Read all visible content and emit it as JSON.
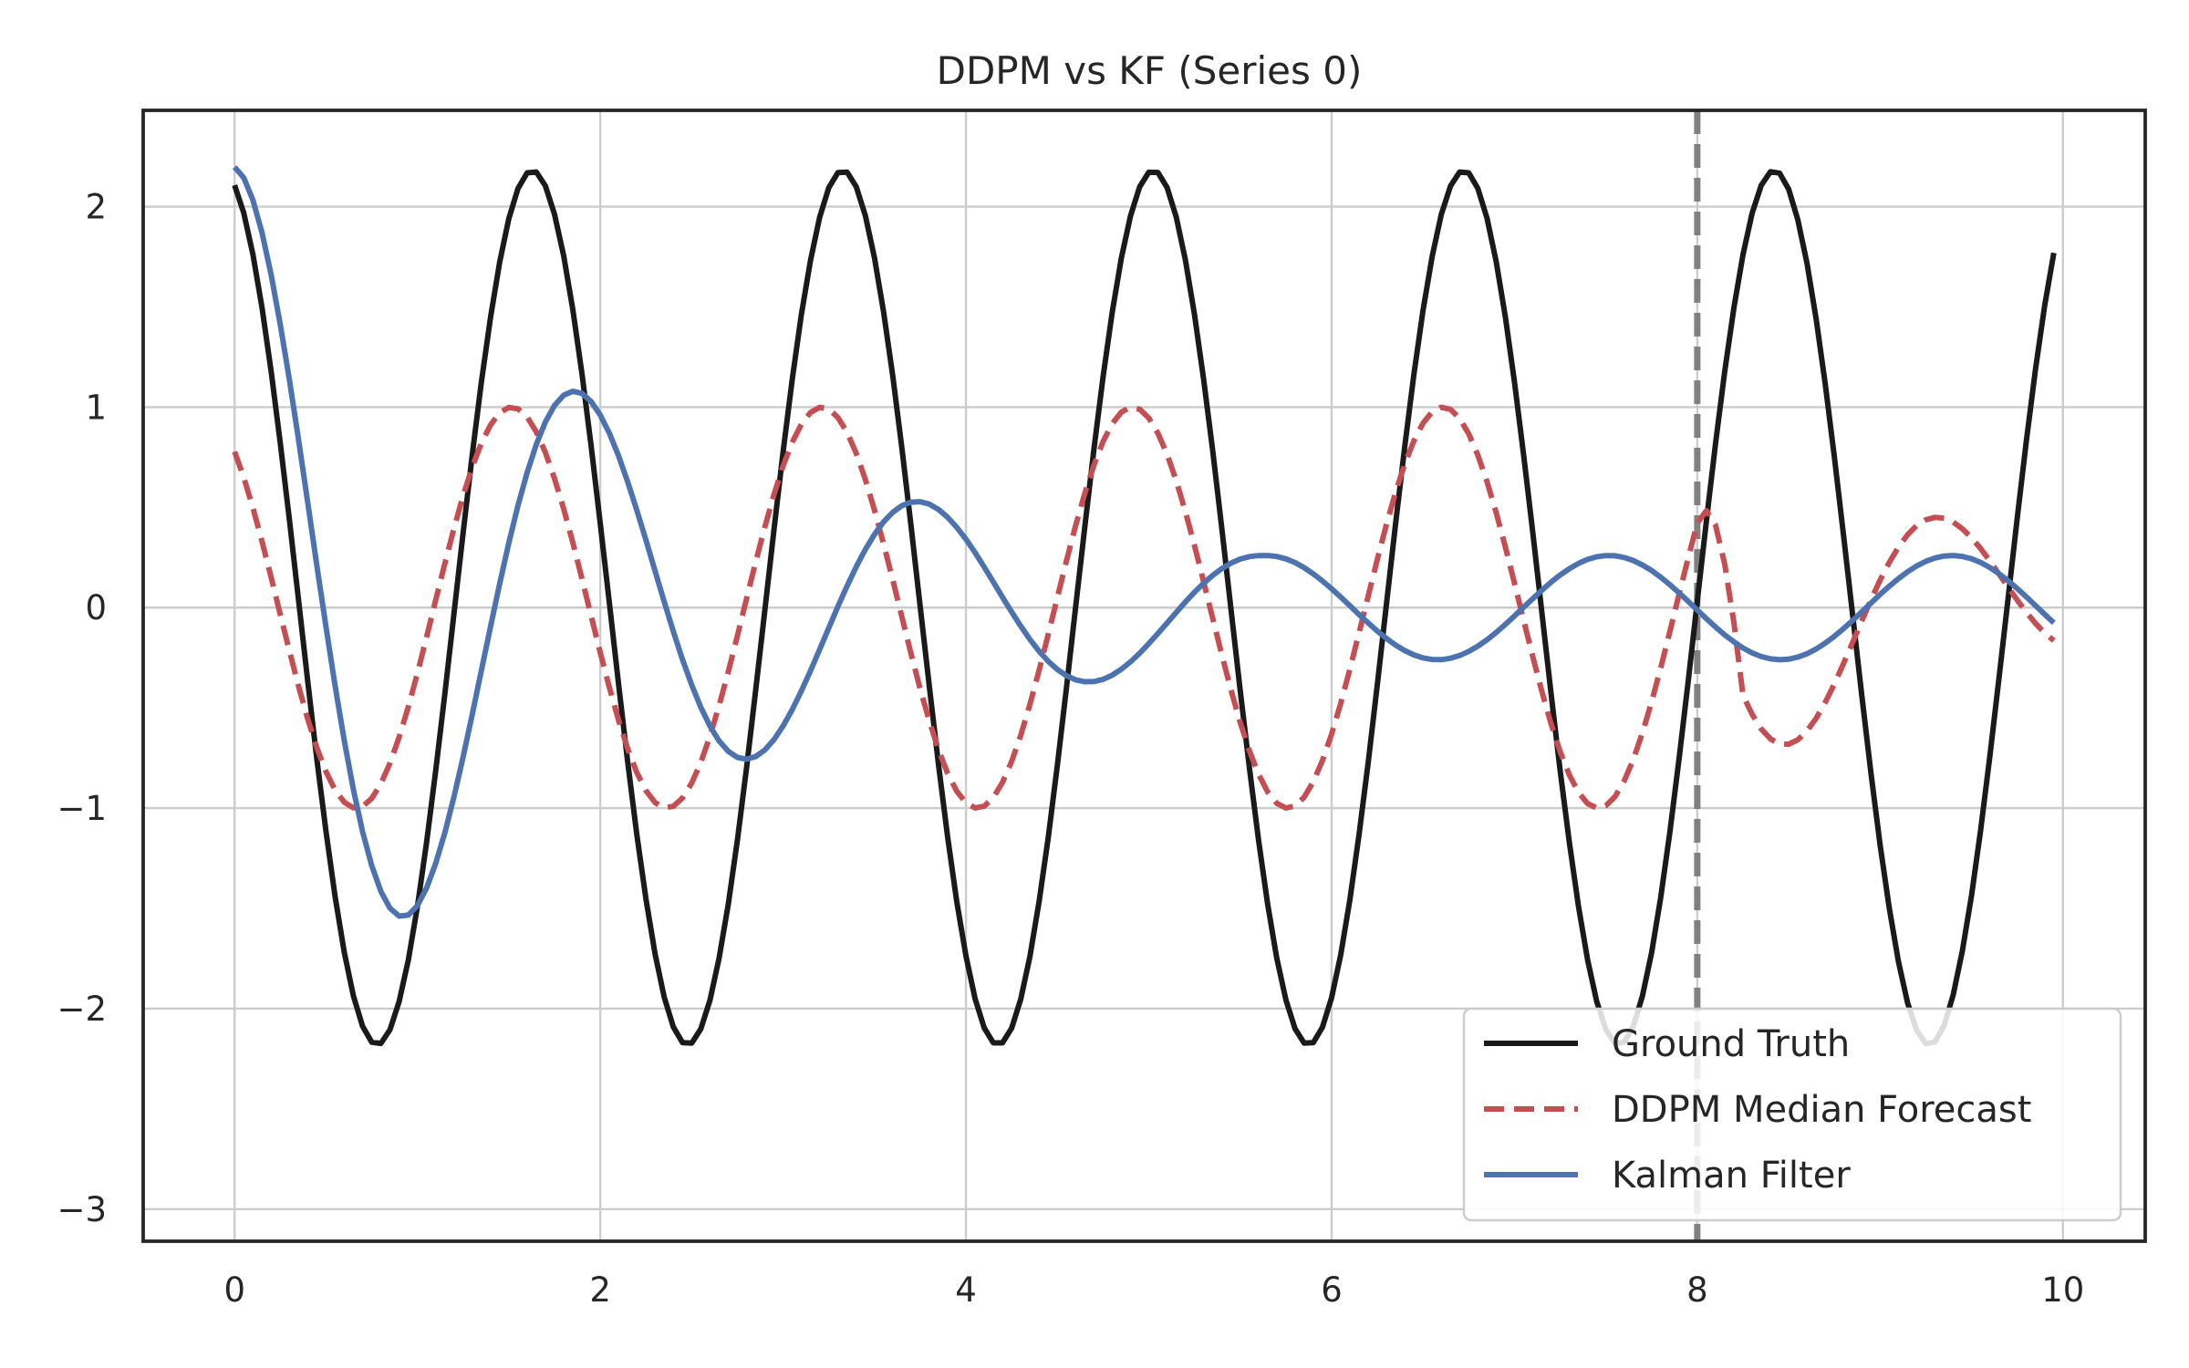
{
  "chart_data": {
    "type": "line",
    "title": "DDPM vs KF (Series 0)",
    "xlabel": "",
    "ylabel": "",
    "xlim": [
      -0.5,
      10.45
    ],
    "ylim": [
      -3.16,
      2.48
    ],
    "xticks": [
      0,
      2,
      4,
      6,
      8,
      10
    ],
    "yticks": [
      -3,
      -2,
      -1,
      0,
      1,
      2
    ],
    "xtick_labels": [
      "0",
      "2",
      "4",
      "6",
      "8",
      "10"
    ],
    "ytick_labels": [
      "−3",
      "−2",
      "−1",
      "0",
      "1",
      "2"
    ],
    "grid": true,
    "legend_position": "lower right",
    "forecast_start_marker": {
      "x": 8,
      "color": "#808080",
      "style": "dashed"
    },
    "x_sampling": {
      "start": 0,
      "end": 9.95,
      "step": 0.05
    },
    "series": [
      {
        "name": "Ground Truth",
        "color": "#1a1a1a",
        "style": "solid",
        "model": {
          "form": "A*cos(w*x + p)",
          "A": 2.18,
          "w": 3.7,
          "p": 0.26
        }
      },
      {
        "name": "DDPM Median Forecast",
        "color": "#c44e52",
        "style": "dashed",
        "model": {
          "form": "A*cos(w*x + p)",
          "A": 1.0,
          "w": 3.7,
          "p": 0.68
        },
        "forecast_region": {
          "x_start": 8.0,
          "A": 0.82,
          "w": 3.7,
          "p": -3.2,
          "A_end": 0.28,
          "x_end": 9.95
        }
      },
      {
        "name": "Kalman Filter",
        "color": "#4c72b0",
        "style": "solid",
        "model": {
          "form": "A*exp(-d*x)*cos(w*x + p) + floor",
          "A": 2.2,
          "d": 0.38,
          "w": 3.35,
          "p": -0.05,
          "floor_amplitude": 0.26
        }
      }
    ]
  }
}
